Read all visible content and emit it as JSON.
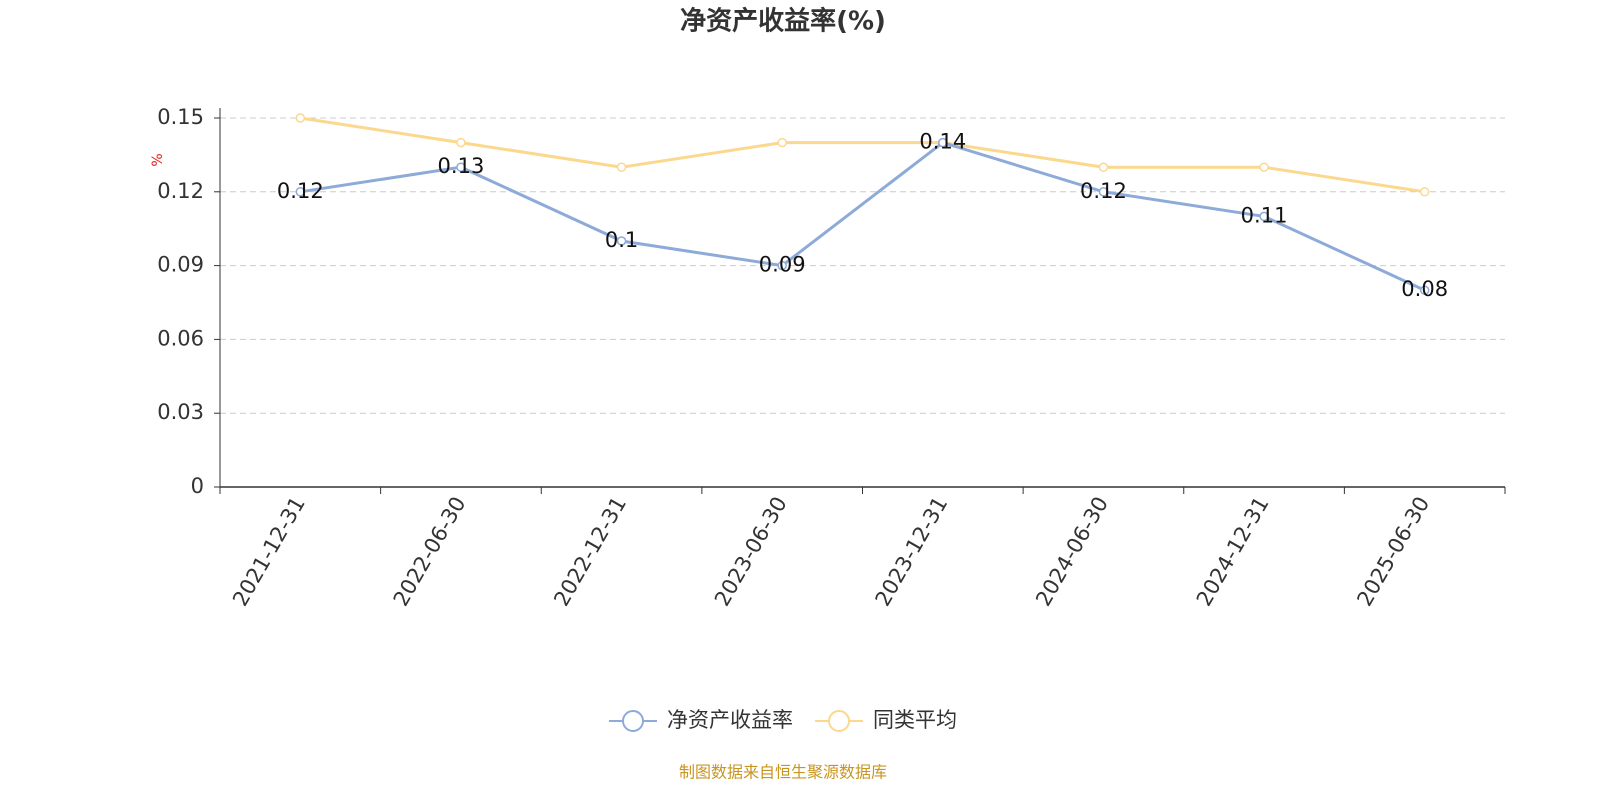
{
  "chart_data": {
    "type": "line",
    "title": "净资产收益率(%)",
    "y_label": "%",
    "categories": [
      "2021-12-31",
      "2022-06-30",
      "2022-12-31",
      "2023-06-30",
      "2023-12-31",
      "2024-06-30",
      "2024-12-31",
      "2025-06-30"
    ],
    "series": [
      {
        "name": "净资产收益率",
        "color": "#8eaad8",
        "values": [
          0.12,
          0.13,
          0.1,
          0.09,
          0.14,
          0.12,
          0.11,
          0.08
        ],
        "data_labels": true
      },
      {
        "name": "同类平均",
        "color": "#fbd88e",
        "values": [
          0.15,
          0.14,
          0.13,
          0.14,
          0.14,
          0.13,
          0.13,
          0.12
        ],
        "data_labels": false
      }
    ],
    "ylim": [
      0,
      0.15
    ],
    "yticks": [
      0,
      0.03,
      0.06,
      0.09,
      0.12,
      0.15
    ],
    "grid": true,
    "legend": "bottom",
    "source": "制图数据来自恒生聚源数据库"
  }
}
